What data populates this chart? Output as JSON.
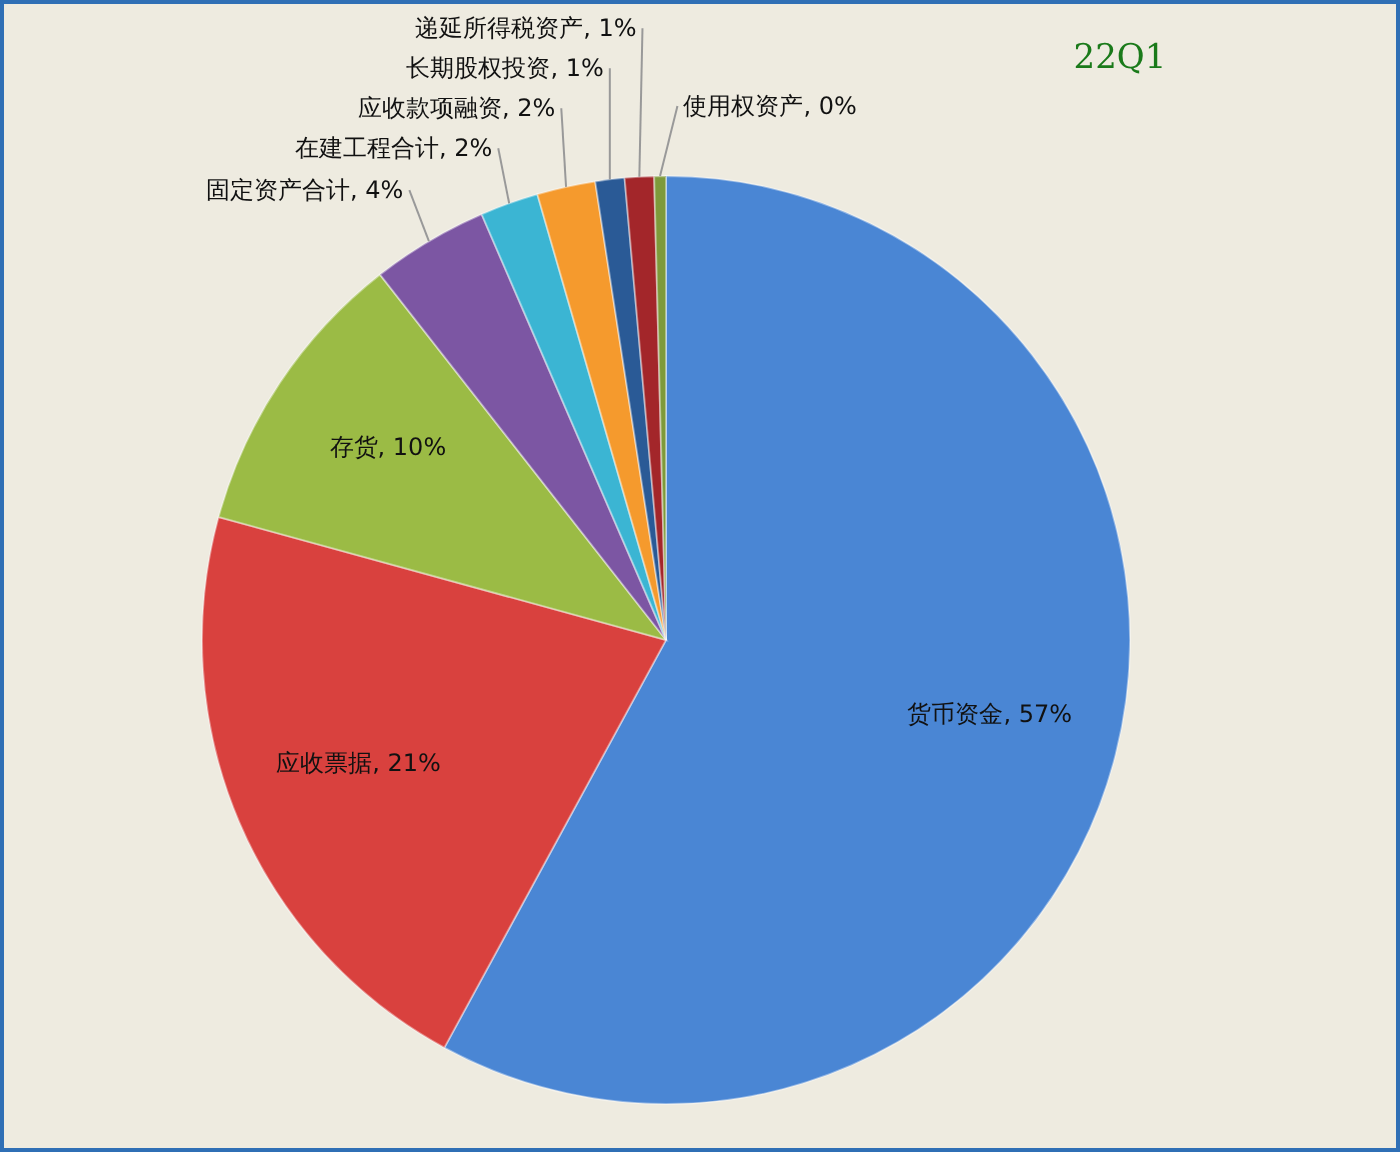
{
  "chart_data": {
    "type": "pie",
    "title": "22Q1",
    "categories": [
      "货币资金",
      "应收票据",
      "存货",
      "固定资产合计",
      "在建工程合计",
      "应收款项融资",
      "长期股权投资",
      "递延所得税资产",
      "使用权资产"
    ],
    "values": [
      57,
      21,
      10,
      4,
      2,
      2,
      1,
      1,
      0.4
    ],
    "value_labels": [
      "57%",
      "21%",
      "10%",
      "4%",
      "2%",
      "2%",
      "1%",
      "1%",
      "0%"
    ],
    "colors": [
      "#4a86d4",
      "#d9413e",
      "#9bbb45",
      "#7c56a3",
      "#3bb5d3",
      "#f59a2d",
      "#2a5a96",
      "#a3262a",
      "#7e9a3a"
    ]
  }
}
